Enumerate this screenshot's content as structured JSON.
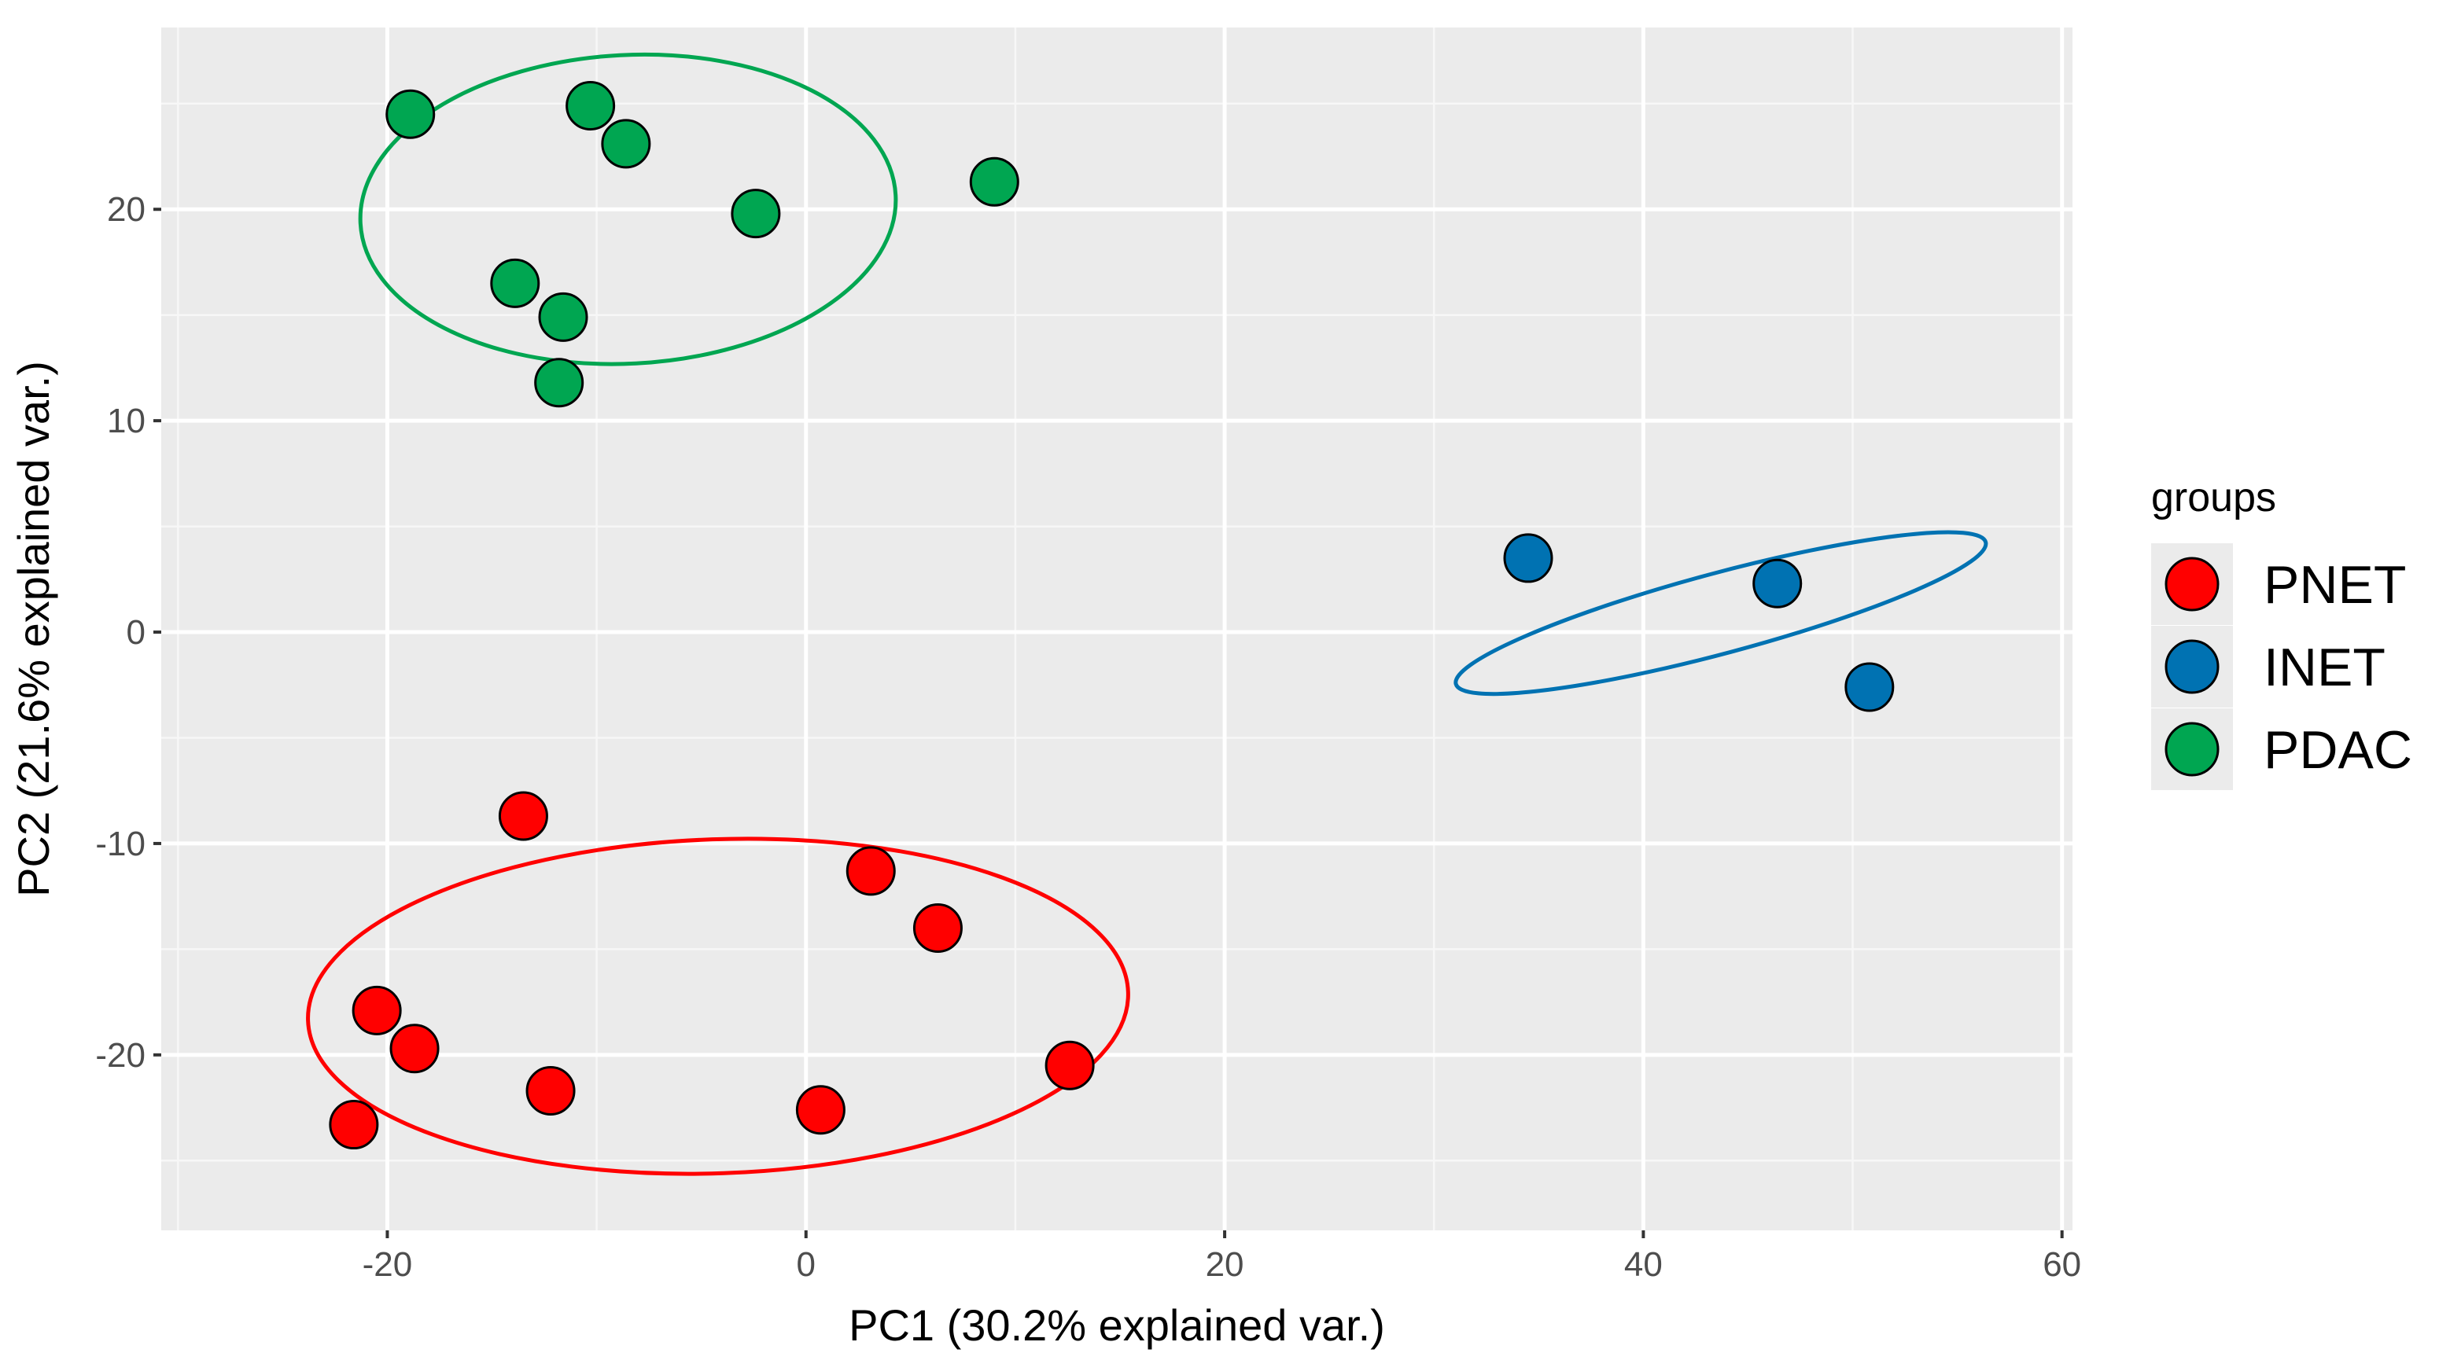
{
  "chart_data": {
    "type": "scatter",
    "title": "",
    "xlabel": "PC1 (30.2% explained var.)",
    "ylabel": "PC2 (21.6% explained var.)",
    "xlim": [
      -30.8,
      60.5
    ],
    "ylim": [
      -28.3,
      28.6
    ],
    "x_ticks": [
      -20,
      0,
      20,
      40,
      60
    ],
    "y_ticks": [
      -20,
      -10,
      0,
      10,
      20
    ],
    "x_tick_labels": [
      "-20",
      "0",
      "20",
      "40",
      "60"
    ],
    "y_tick_labels": [
      "-20",
      "-10",
      "0",
      "10",
      "20"
    ],
    "grid": true,
    "legend": {
      "title": "groups",
      "position": "right"
    },
    "series": [
      {
        "name": "PNET",
        "color": "#ff0000",
        "points": [
          {
            "x": -13.5,
            "y": -8.7
          },
          {
            "x": 3.1,
            "y": -11.3
          },
          {
            "x": 6.3,
            "y": -14.0
          },
          {
            "x": -20.5,
            "y": -17.9
          },
          {
            "x": -18.7,
            "y": -19.7
          },
          {
            "x": -12.2,
            "y": -21.7
          },
          {
            "x": -21.6,
            "y": -23.3
          },
          {
            "x": 0.7,
            "y": -22.6
          },
          {
            "x": 12.6,
            "y": -20.5
          }
        ],
        "ellipse": {
          "cx": -4.2,
          "cy": -17.7,
          "rx": 19.6,
          "ry": 7.9,
          "angle_deg": -2
        }
      },
      {
        "name": "INET",
        "color": "#0072b2",
        "points": [
          {
            "x": 34.5,
            "y": 3.5
          },
          {
            "x": 46.4,
            "y": 2.3
          },
          {
            "x": 50.8,
            "y": -2.6
          }
        ],
        "ellipse": {
          "cx": 43.7,
          "cy": 0.9,
          "rx": 13.1,
          "ry": 1.9,
          "angle_deg": -15
        }
      },
      {
        "name": "PDAC",
        "color": "#00a651",
        "points": [
          {
            "x": -18.9,
            "y": 24.5
          },
          {
            "x": -10.3,
            "y": 24.9
          },
          {
            "x": -8.6,
            "y": 23.1
          },
          {
            "x": -2.4,
            "y": 19.8
          },
          {
            "x": 9.0,
            "y": 21.3
          },
          {
            "x": -13.9,
            "y": 16.5
          },
          {
            "x": -11.6,
            "y": 14.9
          },
          {
            "x": -11.8,
            "y": 11.8
          }
        ],
        "ellipse": {
          "cx": -8.5,
          "cy": 20.0,
          "rx": 12.8,
          "ry": 7.3,
          "angle_deg": -3
        }
      }
    ]
  }
}
